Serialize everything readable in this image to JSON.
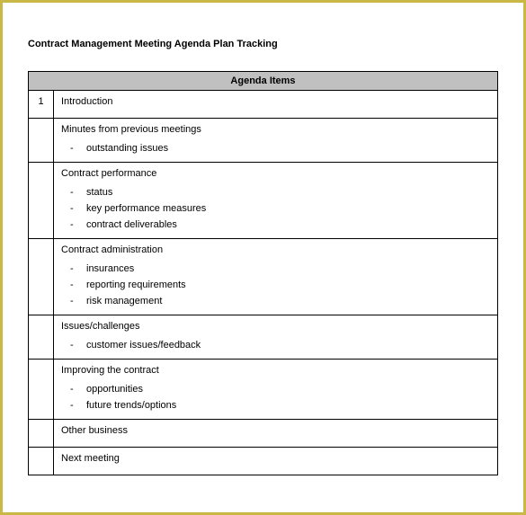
{
  "title": "Contract Management Meeting Agenda Plan Tracking",
  "header": "Agenda Items",
  "row_number": "1",
  "sections": [
    {
      "title": "Introduction",
      "bullets": []
    },
    {
      "title": "Minutes from previous meetings",
      "bullets": [
        "outstanding issues"
      ]
    },
    {
      "title": "Contract performance",
      "bullets": [
        "status",
        "key performance measures",
        "contract deliverables"
      ]
    },
    {
      "title": "Contract administration",
      "bullets": [
        "insurances",
        "reporting requirements",
        "risk management"
      ]
    },
    {
      "title": "Issues/challenges",
      "bullets": [
        "customer issues/feedback"
      ]
    },
    {
      "title": "Improving the contract",
      "bullets": [
        "opportunities",
        "future trends/options"
      ]
    },
    {
      "title": "Other business",
      "bullets": []
    },
    {
      "title": "Next meeting",
      "bullets": []
    }
  ],
  "colors": {
    "border": "#c9b846",
    "header_bg": "#c0c0c0",
    "cell_border": "#000000",
    "background": "#ffffff",
    "text": "#000000"
  }
}
